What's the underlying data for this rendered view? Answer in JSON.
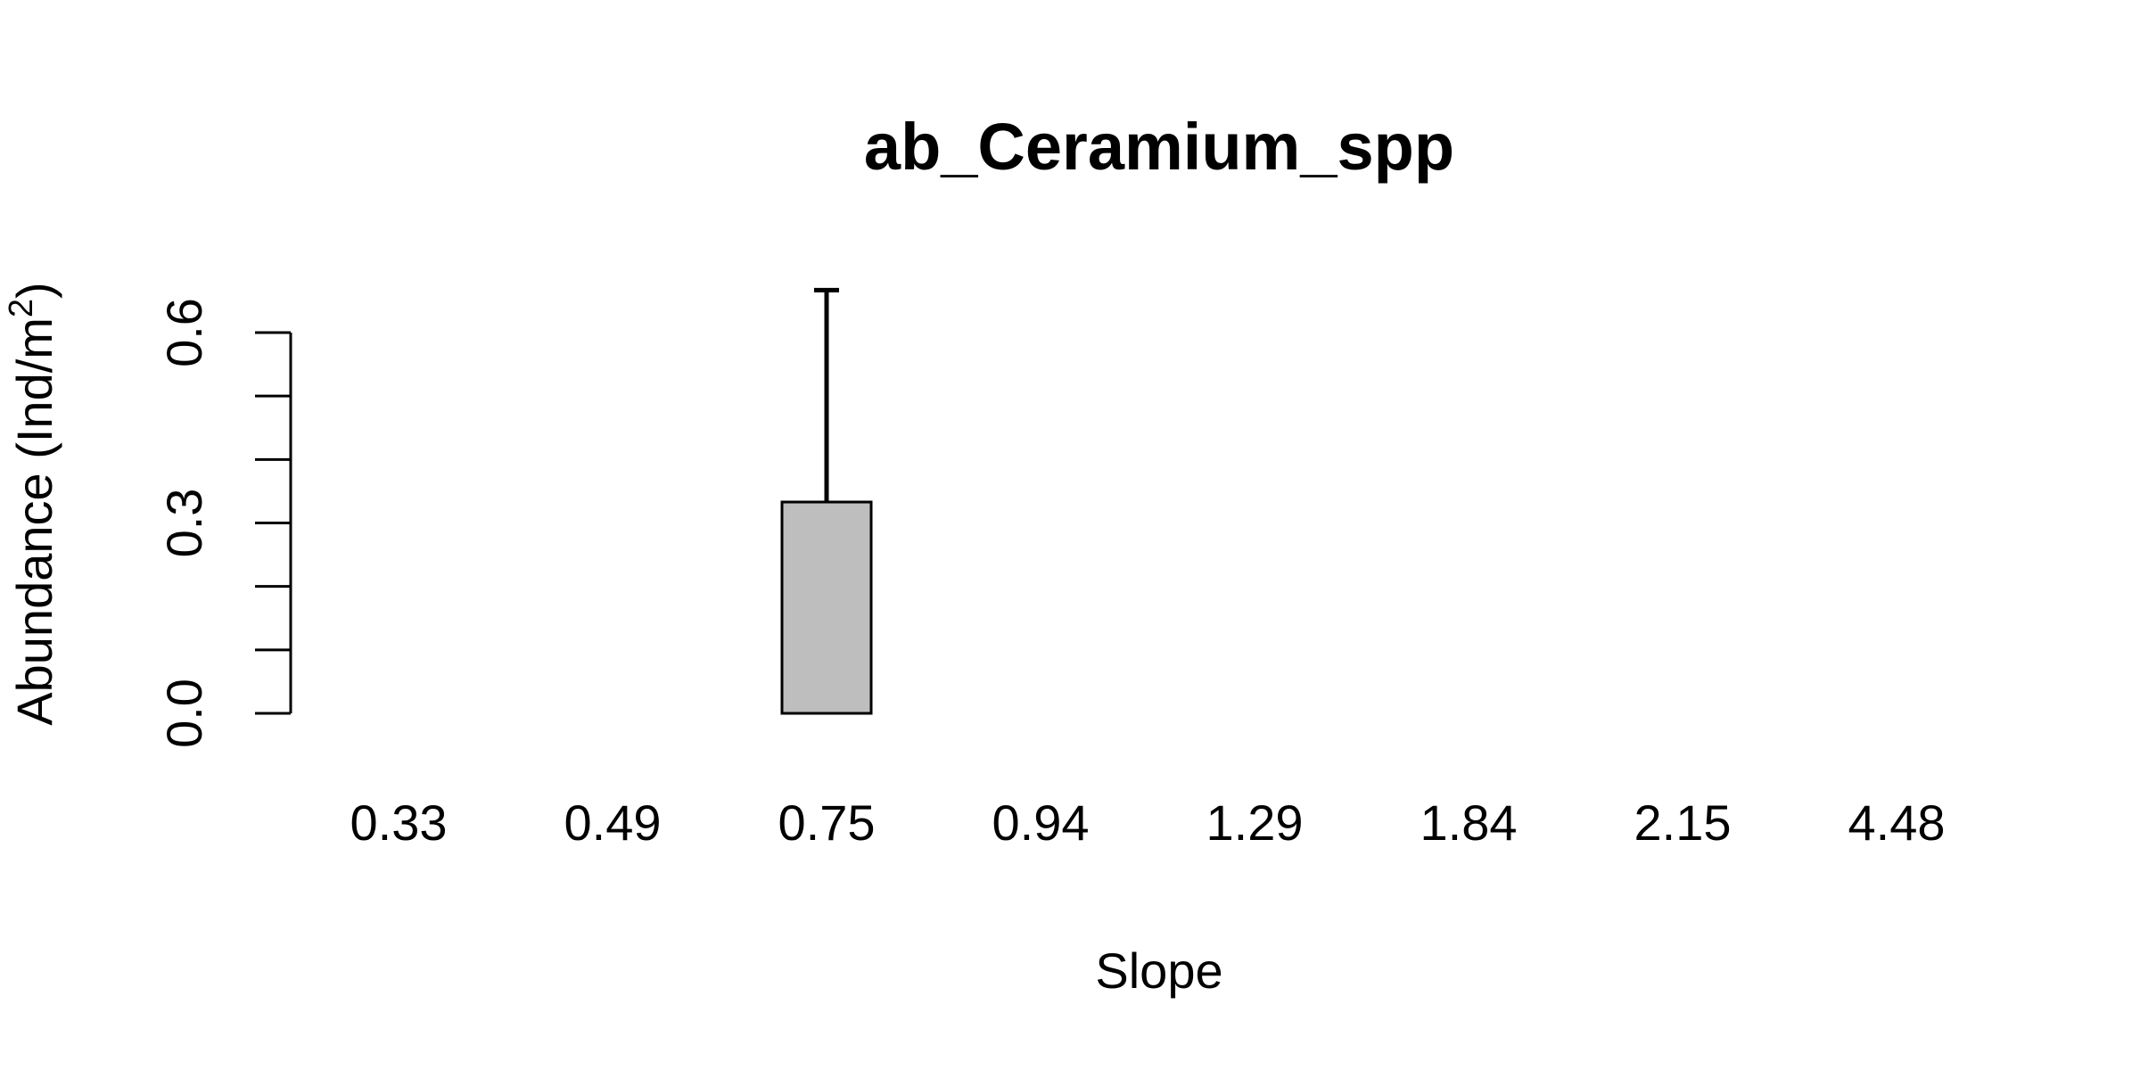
{
  "chart_data": {
    "type": "bar",
    "title": "ab_Ceramium_spp",
    "xlabel": "Slope",
    "ylabel": "Abundance (Ind/m",
    "ylabel_superscript": "2",
    "ylabel_suffix": ")",
    "categories": [
      "0.33",
      "",
      "0.49",
      "",
      "0.75",
      "",
      "0.94",
      "",
      "1.29",
      "",
      "1.84",
      "",
      "2.15",
      "",
      "4.48"
    ],
    "values": [
      0,
      0,
      0,
      0,
      0.333,
      0,
      0,
      0,
      0,
      0,
      0,
      0,
      0,
      0,
      0
    ],
    "error_upper": [
      0,
      0,
      0,
      0,
      0.667,
      0,
      0,
      0,
      0,
      0,
      0,
      0,
      0,
      0,
      0
    ],
    "ylim": [
      0,
      0.6
    ],
    "y_major_ticks": [
      {
        "value": 0.0,
        "label": "0.0"
      },
      {
        "value": 0.3,
        "label": "0.3"
      },
      {
        "value": 0.6,
        "label": "0.6"
      }
    ],
    "y_minor_ticks": [
      0.1,
      0.2,
      0.4,
      0.5
    ],
    "grid": false,
    "legend": "none",
    "bar_color": "#bebebe",
    "bar_border_color": "#000000"
  }
}
